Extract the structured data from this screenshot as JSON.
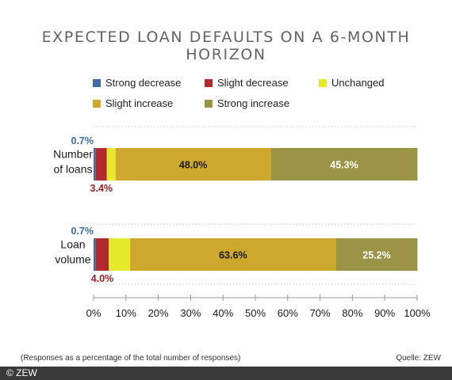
{
  "chart_data": {
    "type": "bar",
    "stacked": true,
    "orientation": "horizontal",
    "title": "EXPECTED LOAN DEFAULTS ON A 6-MONTH HORIZON",
    "categories": [
      "Number\nof loans",
      "Loan\nvolume"
    ],
    "series": [
      {
        "name": "Strong decrease",
        "color": "#3b6ea5",
        "values": [
          0.7,
          0.7
        ],
        "labels": [
          "0.7%",
          "0.7%"
        ],
        "label_color": "#3b6ea5",
        "label_position": "above"
      },
      {
        "name": "Slight decrease",
        "color": "#b22a2e",
        "values": [
          3.4,
          4.0
        ],
        "labels": [
          "3.4%",
          "4.0%"
        ],
        "label_color": "#a11f23",
        "label_position": "below"
      },
      {
        "name": "Unchanged",
        "color": "#e6ea2d",
        "values": [
          2.7,
          6.6
        ],
        "labels": [
          "2.7%",
          "6.6%"
        ],
        "label_color": "#1a1a1a",
        "label_position": "inside"
      },
      {
        "name": "Slight increase",
        "color": "#cda82c",
        "values": [
          48.0,
          63.6
        ],
        "labels": [
          "48.0%",
          "63.6%"
        ],
        "label_color": "#1a1a1a",
        "label_position": "inside"
      },
      {
        "name": "Strong increase",
        "color": "#9b9446",
        "values": [
          45.3,
          25.2
        ],
        "labels": [
          "45.3%",
          "25.2%"
        ],
        "label_color": "#ffffff",
        "label_position": "inside"
      }
    ],
    "xlim": [
      0,
      100
    ],
    "xticks": [
      "0%",
      "10%",
      "20%",
      "30%",
      "40%",
      "50%",
      "60%",
      "70%",
      "80%",
      "90%",
      "100%"
    ],
    "grid": "none",
    "legend_placement": "top"
  },
  "footnote": "(Responses as a percentage of the total number of responses)",
  "source": "Quelle: ZEW",
  "copyright": "© ZEW"
}
